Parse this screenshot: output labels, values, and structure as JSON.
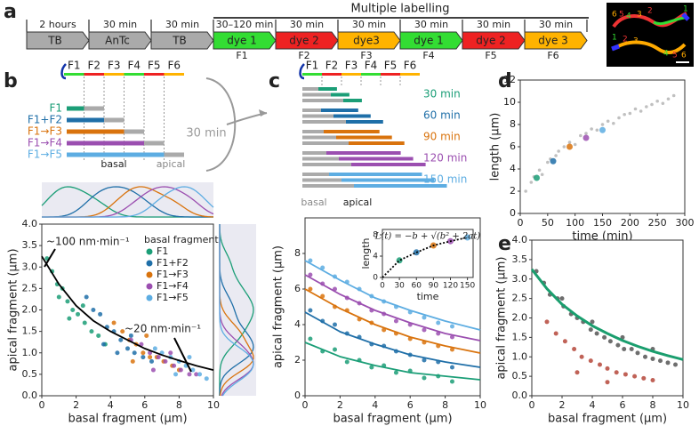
{
  "panels": [
    "a",
    "b",
    "c",
    "d",
    "e"
  ],
  "timeline": {
    "title": "Multiple labelling",
    "durations": [
      "2 hours",
      "30 min",
      "30 min",
      "30–120 min",
      "30 min",
      "30 min",
      "30 min",
      "30 min",
      "30 min"
    ],
    "steps": [
      "TB",
      "AnTc",
      "TB",
      "dye 1",
      "dye 2",
      "dye3",
      "dye 1",
      "dye 2",
      "dye 3"
    ],
    "step_colors": [
      "#aaaaaa",
      "#aaaaaa",
      "#aaaaaa",
      "#33dd33",
      "#ee2222",
      "#ffb300",
      "#33dd33",
      "#ee2222",
      "#ffb300"
    ],
    "fragments": [
      "F1",
      "F2",
      "F3",
      "F4",
      "F5",
      "F6"
    ],
    "image_labels": [
      "6",
      "5",
      "4",
      "3",
      "2",
      "1",
      "1",
      "2",
      "3",
      "4",
      "5",
      "6"
    ]
  },
  "schematic_b": {
    "interval": "30 min",
    "basal": "basal",
    "apical": "apical"
  },
  "schematic_c": {
    "basal": "basal",
    "apical": "apical"
  },
  "chart_data": [
    {
      "type": "scatter",
      "xlabel": "basal fragment (μm)",
      "ylabel": "apical fragment (μm)",
      "legend_title": "basal fragment",
      "xlim": [
        0,
        10
      ],
      "ylim": [
        0,
        4
      ],
      "xticks": [
        0,
        2,
        4,
        6,
        8,
        10
      ],
      "yticks": [
        {
          "value": 0,
          "label": "0.0"
        },
        0.5,
        {
          "value": 1,
          "label": "1.0"
        },
        1.5,
        {
          "value": 2,
          "label": "2.0"
        },
        2.5,
        {
          "value": 3,
          "label": "3.0"
        },
        3.5,
        {
          "value": 4,
          "label": "4.0"
        }
      ],
      "marginal_density": true,
      "series": [
        {
          "name": "F1",
          "color": "#1b9e77",
          "x": [
            0.3,
            0.6,
            0.9,
            1.2,
            1.5,
            1.8,
            2.1,
            2.5,
            2.9,
            3.3,
            3.7,
            1.0,
            1.6,
            2.4
          ],
          "values": [
            3.2,
            2.9,
            2.6,
            2.5,
            2.2,
            2.0,
            1.9,
            1.7,
            1.5,
            1.4,
            1.2,
            2.3,
            1.8,
            2.1
          ]
        },
        {
          "name": "F1+F2",
          "color": "#1f6fa8",
          "x": [
            2.6,
            3.0,
            3.4,
            3.8,
            4.2,
            4.6,
            5.0,
            5.4,
            5.9,
            6.4,
            3.6,
            4.4,
            5.2
          ],
          "values": [
            2.3,
            2.0,
            1.9,
            1.6,
            1.5,
            1.3,
            1.1,
            1.0,
            0.9,
            0.8,
            1.2,
            1.0,
            1.4
          ]
        },
        {
          "name": "F1→F3",
          "color": "#d9730d",
          "x": [
            4.2,
            4.7,
            5.1,
            5.5,
            5.9,
            6.3,
            6.7,
            7.1,
            7.6,
            8.0,
            5.3,
            6.1
          ],
          "values": [
            1.7,
            1.5,
            1.3,
            1.2,
            1.0,
            0.9,
            0.9,
            0.8,
            0.7,
            0.6,
            0.8,
            1.4
          ]
        },
        {
          "name": "F1→F4",
          "color": "#9b4fb0",
          "x": [
            5.2,
            5.8,
            6.3,
            6.8,
            7.2,
            7.7,
            8.1,
            8.6,
            9.0,
            6.5,
            7.5
          ],
          "values": [
            1.3,
            1.2,
            1.0,
            0.9,
            0.8,
            0.7,
            0.6,
            0.5,
            0.5,
            0.6,
            1.0
          ]
        },
        {
          "name": "F1→F5",
          "color": "#5dade2",
          "x": [
            6.6,
            7.0,
            7.5,
            8.0,
            8.4,
            8.8,
            9.2,
            9.6,
            7.8,
            8.6
          ],
          "values": [
            1.1,
            1.0,
            0.9,
            0.8,
            0.7,
            0.6,
            0.5,
            0.4,
            0.5,
            0.9
          ]
        }
      ],
      "fits": [
        {
          "color": "#000000",
          "x": [
            0,
            1,
            2,
            3,
            4,
            5,
            6,
            7,
            8,
            9,
            10
          ],
          "values": [
            3.25,
            2.6,
            2.1,
            1.75,
            1.5,
            1.3,
            1.1,
            0.95,
            0.82,
            0.7,
            0.6
          ]
        }
      ],
      "annotations": [
        "~100 nm·min⁻¹",
        "~20 nm·min⁻¹"
      ]
    },
    {
      "type": "scatter",
      "xlabel": "basal fragment (μm)",
      "ylabel": "apical fragment (μm)",
      "xlim": [
        0,
        10
      ],
      "ylim": [
        0,
        10
      ],
      "xticks": [
        0,
        2,
        4,
        6,
        8,
        10
      ],
      "yticks": [
        0,
        2,
        4,
        6,
        8
      ],
      "series": [
        {
          "name": "30 min",
          "color": "#1b9e77",
          "x": [
            0.3,
            1,
            1.7,
            2.4,
            3.1,
            3.8,
            4.5,
            5.2,
            6,
            6.8,
            7.6,
            8.4
          ],
          "values": [
            3.2,
            2.5,
            2.6,
            1.9,
            2.0,
            1.6,
            1.7,
            1.3,
            1.4,
            1.0,
            1.1,
            0.8
          ]
        },
        {
          "name": "60 min",
          "color": "#1f6fa8",
          "x": [
            0.3,
            1,
            1.7,
            2.4,
            3.1,
            3.8,
            4.5,
            5.2,
            6,
            6.8,
            7.6,
            8.4
          ],
          "values": [
            4.8,
            4.2,
            4.0,
            3.5,
            3.3,
            2.9,
            2.8,
            2.5,
            2.3,
            2.0,
            1.9,
            1.6
          ]
        },
        {
          "name": "90 min",
          "color": "#d9730d",
          "x": [
            0.3,
            1,
            1.7,
            2.4,
            3.1,
            3.8,
            4.5,
            5.2,
            6,
            6.8,
            7.6,
            8.4
          ],
          "values": [
            6.0,
            5.6,
            5.0,
            4.8,
            4.3,
            4.1,
            3.7,
            3.5,
            3.2,
            3.0,
            2.8,
            2.6
          ]
        },
        {
          "name": "120 min",
          "color": "#9b4fb0",
          "x": [
            0.3,
            1,
            1.7,
            2.4,
            3.1,
            3.8,
            4.5,
            5.2,
            6,
            6.8,
            7.6,
            8.4
          ],
          "values": [
            6.8,
            6.3,
            6.0,
            5.5,
            5.2,
            4.8,
            4.6,
            4.2,
            4.0,
            3.7,
            3.5,
            3.3
          ]
        },
        {
          "name": "150 min",
          "color": "#5dade2",
          "x": [
            0.3,
            1,
            1.7,
            2.4,
            3.1,
            3.8,
            4.5,
            5.2,
            6,
            6.8,
            7.6,
            8.4
          ],
          "values": [
            7.6,
            7.2,
            6.7,
            6.4,
            6.0,
            5.6,
            5.3,
            5.0,
            4.7,
            4.4,
            4.1,
            3.9
          ]
        }
      ],
      "fits": [
        {
          "color": "#1b9e77",
          "x": [
            0,
            2,
            4,
            6,
            8,
            10
          ],
          "values": [
            3.0,
            2.2,
            1.7,
            1.3,
            1.1,
            0.9
          ]
        },
        {
          "color": "#1f6fa8",
          "x": [
            0,
            2,
            4,
            6,
            8,
            10
          ],
          "values": [
            4.7,
            3.6,
            2.9,
            2.3,
            1.9,
            1.6
          ]
        },
        {
          "color": "#d9730d",
          "x": [
            0,
            2,
            4,
            6,
            8,
            10
          ],
          "values": [
            6.0,
            4.9,
            4.0,
            3.3,
            2.8,
            2.4
          ]
        },
        {
          "color": "#9b4fb0",
          "x": [
            0,
            2,
            4,
            6,
            8,
            10
          ],
          "values": [
            6.8,
            5.7,
            4.8,
            4.1,
            3.5,
            3.1
          ]
        },
        {
          "color": "#5dade2",
          "x": [
            0,
            2,
            4,
            6,
            8,
            10
          ],
          "values": [
            7.6,
            6.5,
            5.5,
            4.8,
            4.2,
            3.7
          ]
        }
      ]
    },
    {
      "type": "scatter",
      "xlabel": "time",
      "ylabel": "length",
      "formula": "L(t) = −b + √(b² + 2at)",
      "xlim": [
        0,
        160
      ],
      "ylim": [
        0,
        9
      ],
      "xticks": [
        0,
        30,
        60,
        90,
        120,
        150
      ],
      "yticks": [
        0,
        4,
        8
      ],
      "series": [
        {
          "x": [
            30,
            60,
            90,
            120,
            150
          ],
          "values": [
            3.2,
            4.7,
            6.0,
            6.8,
            7.5
          ],
          "colors": [
            "#1b9e77",
            "#1f6fa8",
            "#d9730d",
            "#9b4fb0",
            "#5dade2"
          ],
          "size": 3.5
        }
      ],
      "fits": [
        {
          "color": "#000000",
          "dashed": true,
          "x": [
            0,
            30,
            60,
            90,
            120,
            150
          ],
          "values": [
            0,
            3.2,
            4.7,
            6.0,
            6.8,
            7.5
          ]
        }
      ]
    },
    {
      "type": "scatter",
      "xlabel": "time (min)",
      "ylabel": "length (μm)",
      "xlim": [
        0,
        300
      ],
      "ylim": [
        0,
        12
      ],
      "xticks": [
        0,
        50,
        100,
        150,
        200,
        250,
        300
      ],
      "yticks": [
        0,
        2,
        4,
        6,
        8,
        10,
        12
      ],
      "series": [
        {
          "color": "#b5b5b5",
          "size": 1.8,
          "x": [
            10,
            20,
            25,
            35,
            40,
            50,
            55,
            65,
            70,
            80,
            90,
            100,
            110,
            120,
            130,
            140,
            150,
            160,
            170,
            180,
            190,
            200,
            210,
            220,
            230,
            240,
            250,
            260,
            270,
            280
          ],
          "values": [
            2.0,
            2.8,
            3.3,
            3.9,
            3.5,
            4.6,
            4.9,
            5.2,
            5.6,
            6.0,
            6.4,
            6.2,
            7.0,
            7.2,
            7.6,
            7.5,
            8.0,
            8.3,
            8.1,
            8.6,
            8.9,
            9.0,
            9.4,
            9.2,
            9.6,
            9.8,
            10.1,
            9.9,
            10.3,
            10.6
          ]
        },
        {
          "x": [
            30,
            60,
            90,
            120,
            150
          ],
          "values": [
            3.2,
            4.7,
            6.0,
            6.8,
            7.5
          ],
          "colors": [
            "#1b9e77",
            "#1f6fa8",
            "#d9730d",
            "#9b4fb0",
            "#5dade2"
          ],
          "size": 3.5
        }
      ]
    },
    {
      "type": "scatter",
      "xlabel": "basal fragment (μm)",
      "ylabel": "apical fragment (μm)",
      "xlim": [
        0,
        10
      ],
      "ylim": [
        0,
        4
      ],
      "xticks": [
        0,
        2,
        4,
        6,
        8,
        10
      ],
      "yticks": [
        {
          "value": 0,
          "label": "0.0"
        },
        0.5,
        {
          "value": 1,
          "label": "1.0"
        },
        1.5,
        {
          "value": 2,
          "label": "2.0"
        },
        2.5,
        {
          "value": 3,
          "label": "3.0"
        },
        3.5,
        {
          "value": 4,
          "label": "4.0"
        }
      ],
      "series": [
        {
          "color": "#555555",
          "x": [
            0.3,
            0.8,
            1.2,
            1.7,
            2.1,
            2.6,
            3.0,
            3.4,
            3.9,
            4.3,
            4.8,
            5.2,
            5.7,
            6.1,
            6.6,
            7.0,
            7.5,
            8.0,
            8.5,
            9.0,
            9.5,
            2.0,
            4.0,
            6.0,
            8.0
          ],
          "values": [
            3.2,
            2.9,
            2.6,
            2.5,
            2.3,
            2.1,
            2.0,
            1.9,
            1.7,
            1.6,
            1.5,
            1.4,
            1.3,
            1.2,
            1.2,
            1.1,
            1.0,
            0.95,
            0.9,
            0.85,
            0.8,
            2.5,
            1.9,
            1.5,
            1.2
          ]
        },
        {
          "color": "#b5473a",
          "x": [
            1.0,
            1.6,
            2.2,
            2.8,
            3.3,
            3.9,
            4.5,
            5.0,
            5.6,
            6.2,
            6.8,
            7.4,
            8.0,
            3.0,
            5.0
          ],
          "values": [
            1.9,
            1.6,
            1.4,
            1.2,
            1.0,
            0.9,
            0.8,
            0.7,
            0.6,
            0.55,
            0.5,
            0.45,
            0.4,
            0.6,
            0.35
          ]
        }
      ],
      "fits": [
        {
          "color": "#1a9e6e",
          "width": 3,
          "x": [
            0,
            1,
            2,
            3,
            4,
            5,
            6,
            7,
            8,
            9,
            10
          ],
          "values": [
            3.25,
            2.75,
            2.35,
            2.05,
            1.8,
            1.6,
            1.42,
            1.27,
            1.14,
            1.03,
            0.93
          ]
        }
      ]
    }
  ]
}
